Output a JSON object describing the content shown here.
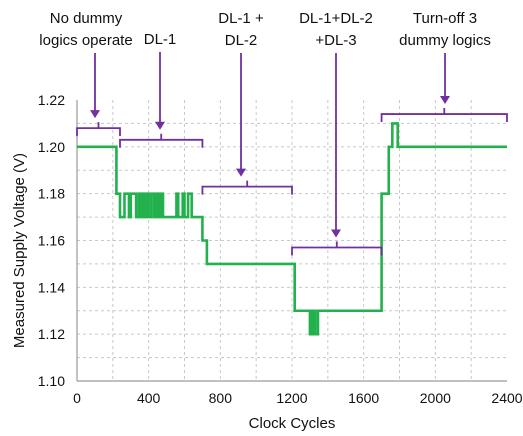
{
  "chart_data": {
    "type": "line",
    "xlabel": "Clock Cycles",
    "ylabel": "Measured Supply Voltage (V)",
    "xlim": [
      0,
      2400
    ],
    "ylim": [
      1.1,
      1.22
    ],
    "x_ticks": [
      0,
      400,
      800,
      1200,
      1600,
      2000,
      2400
    ],
    "x_tick_labels": [
      "0",
      "400",
      "800",
      "1200",
      "1600",
      "2000",
      "2400"
    ],
    "y_ticks": [
      1.1,
      1.12,
      1.14,
      1.16,
      1.18,
      1.2,
      1.22
    ],
    "y_tick_labels": [
      "1.10",
      "1.12",
      "1.14",
      "1.16",
      "1.18",
      "1.20",
      "1.22"
    ],
    "grid": "dashed",
    "series": [
      {
        "color": "#22b14c",
        "x": [
          0,
          220,
          220,
          240,
          240,
          265,
          265,
          290,
          290,
          300,
          300,
          330,
          330,
          345,
          345,
          355,
          355,
          360,
          360,
          368,
          368,
          375,
          375,
          385,
          385,
          395,
          395,
          400,
          400,
          415,
          415,
          430,
          430,
          440,
          440,
          450,
          450,
          455,
          455,
          460,
          460,
          470,
          470,
          480,
          480,
          555,
          555,
          565,
          565,
          590,
          590,
          600,
          600,
          620,
          620,
          640,
          640,
          700,
          700,
          725,
          725,
          745,
          745,
          1215,
          1215,
          1240,
          1240,
          1300,
          1300,
          1305,
          1305,
          1315,
          1315,
          1320,
          1320,
          1330,
          1330,
          1345,
          1345,
          1700,
          1700,
          1740,
          1740,
          1760,
          1760,
          1790,
          1790,
          1855,
          1855,
          2400
        ],
        "y": [
          1.2,
          1.2,
          1.18,
          1.18,
          1.17,
          1.17,
          1.18,
          1.18,
          1.17,
          1.17,
          1.18,
          1.18,
          1.17,
          1.17,
          1.18,
          1.18,
          1.17,
          1.17,
          1.18,
          1.18,
          1.17,
          1.17,
          1.18,
          1.18,
          1.17,
          1.17,
          1.18,
          1.18,
          1.17,
          1.17,
          1.18,
          1.18,
          1.17,
          1.17,
          1.18,
          1.18,
          1.17,
          1.17,
          1.18,
          1.18,
          1.17,
          1.17,
          1.18,
          1.18,
          1.17,
          1.17,
          1.18,
          1.18,
          1.17,
          1.17,
          1.18,
          1.18,
          1.17,
          1.17,
          1.18,
          1.18,
          1.17,
          1.17,
          1.16,
          1.16,
          1.15,
          1.15,
          1.15,
          1.15,
          1.13,
          1.13,
          1.13,
          1.13,
          1.12,
          1.12,
          1.13,
          1.13,
          1.12,
          1.12,
          1.13,
          1.13,
          1.12,
          1.12,
          1.13,
          1.13,
          1.18,
          1.18,
          1.2,
          1.2,
          1.21,
          1.21,
          1.2,
          1.2,
          1.2,
          1.2
        ]
      }
    ],
    "annotations": [
      {
        "lines": [
          "No dummy",
          "logics operate"
        ],
        "bracket_x": [
          0,
          240
        ],
        "bracket_y": 1.208
      },
      {
        "lines": [
          "DL-1"
        ],
        "bracket_x": [
          240,
          700
        ],
        "bracket_y": 1.203
      },
      {
        "lines": [
          "DL-1 +",
          "DL-2"
        ],
        "bracket_x": [
          700,
          1200
        ],
        "bracket_y": 1.183
      },
      {
        "lines": [
          "DL-1+DL-2",
          "+DL-3"
        ],
        "bracket_x": [
          1200,
          1700
        ],
        "bracket_y": 1.157
      },
      {
        "lines": [
          "Turn-off 3",
          "dummy logics"
        ],
        "bracket_x": [
          1700,
          2400
        ],
        "bracket_y": 1.214
      }
    ],
    "annotation_color": "#7030a0",
    "line_color": "#22b14c"
  }
}
